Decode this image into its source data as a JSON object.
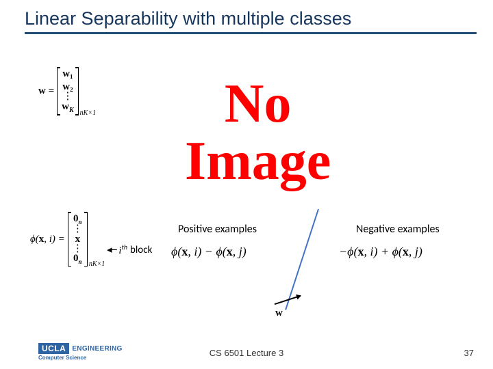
{
  "title": "Linear Separability with multiple classes",
  "colors": {
    "title": "#17365d",
    "underline": "#1f4e79",
    "no_image": "#ff0000",
    "separator_line": "#4472c4",
    "logo_blue": "#2e63a4"
  },
  "no_image": {
    "line1": "No",
    "line2": "Image",
    "fontsize": 80
  },
  "w_vector": {
    "lhs": "w =",
    "entries": [
      "w₁",
      "w₂",
      "⋮",
      "w_K"
    ],
    "dimension": "nK×1"
  },
  "phi_vector": {
    "lhs": "ϕ(x, i) =",
    "entries": [
      "0ₙ",
      "⋮",
      "x",
      "⋮",
      "0ₙ"
    ],
    "dimension": "nK×1",
    "pointer_arrow": "◂---",
    "pointer_label_i": "i",
    "pointer_label_th": "th",
    "pointer_label_block": "block"
  },
  "examples": {
    "positive_label": "Positive examples",
    "negative_label": "Negative examples",
    "positive_formula": "ϕ(x, i) − ϕ(x, j)",
    "negative_formula": "−ϕ(x, i) + ϕ(x, j)",
    "separator_vector_label": "w"
  },
  "footer": {
    "lecture": "CS 6501 Lecture 3",
    "page": "37",
    "logo_ucla": "UCLA",
    "logo_eng": "ENGINEERING",
    "logo_cs": "Computer Science"
  }
}
